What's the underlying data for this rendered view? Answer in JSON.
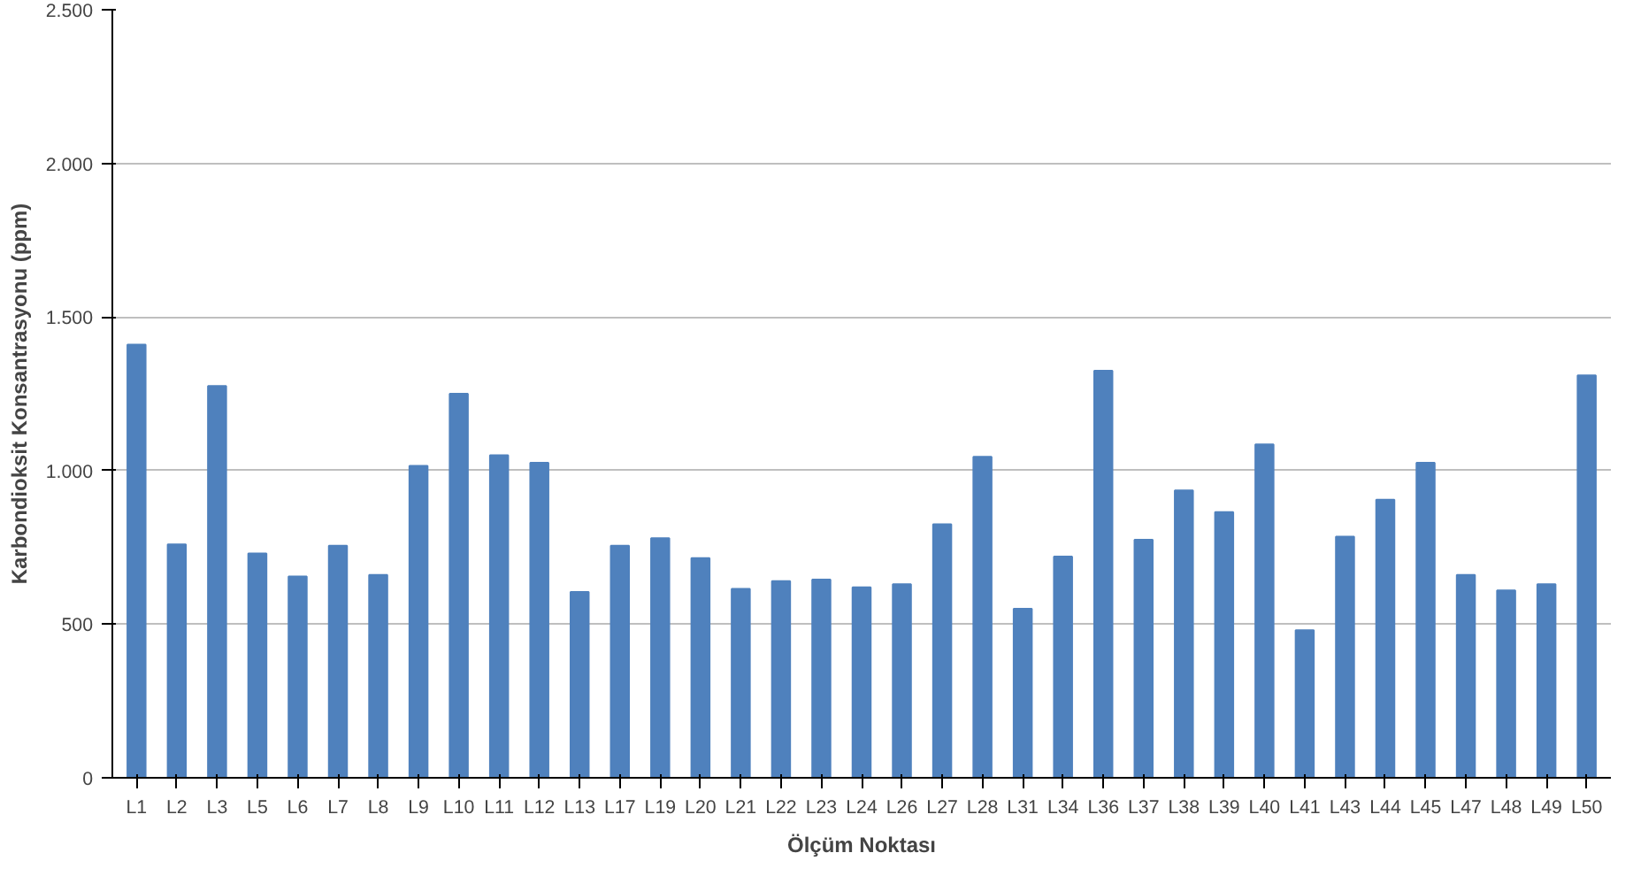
{
  "chart_data": {
    "type": "bar",
    "xlabel": "Ölçüm Noktası",
    "ylabel": "Karbondioksit Konsantrasyonu (ppm)",
    "categories": [
      "L1",
      "L2",
      "L3",
      "L5",
      "L6",
      "L7",
      "L8",
      "L9",
      "L10",
      "L11",
      "L12",
      "L13",
      "L17",
      "L19",
      "L20",
      "L21",
      "L22",
      "L23",
      "L24",
      "L26",
      "L27",
      "L28",
      "L31",
      "L34",
      "L36",
      "L37",
      "L38",
      "L39",
      "L40",
      "L41",
      "L43",
      "L44",
      "L45",
      "L47",
      "L48",
      "L49",
      "L50"
    ],
    "values": [
      1410,
      760,
      1275,
      730,
      655,
      755,
      660,
      1015,
      1250,
      1050,
      1025,
      605,
      755,
      780,
      715,
      615,
      640,
      645,
      620,
      630,
      825,
      1045,
      550,
      720,
      1325,
      775,
      935,
      865,
      1085,
      480,
      785,
      905,
      1025,
      660,
      610,
      630,
      1310
    ],
    "color": "#4f81bd",
    "ylim": [
      0,
      2500
    ],
    "yticks": [
      0,
      {
        "value": 500,
        "label": "500"
      },
      {
        "value": 1000,
        "label": "1.000"
      },
      {
        "value": 1500,
        "label": "1.500"
      },
      {
        "value": 2000,
        "label": "2.000"
      },
      {
        "value": 2500,
        "label": "2.500"
      }
    ],
    "grid": "y"
  }
}
